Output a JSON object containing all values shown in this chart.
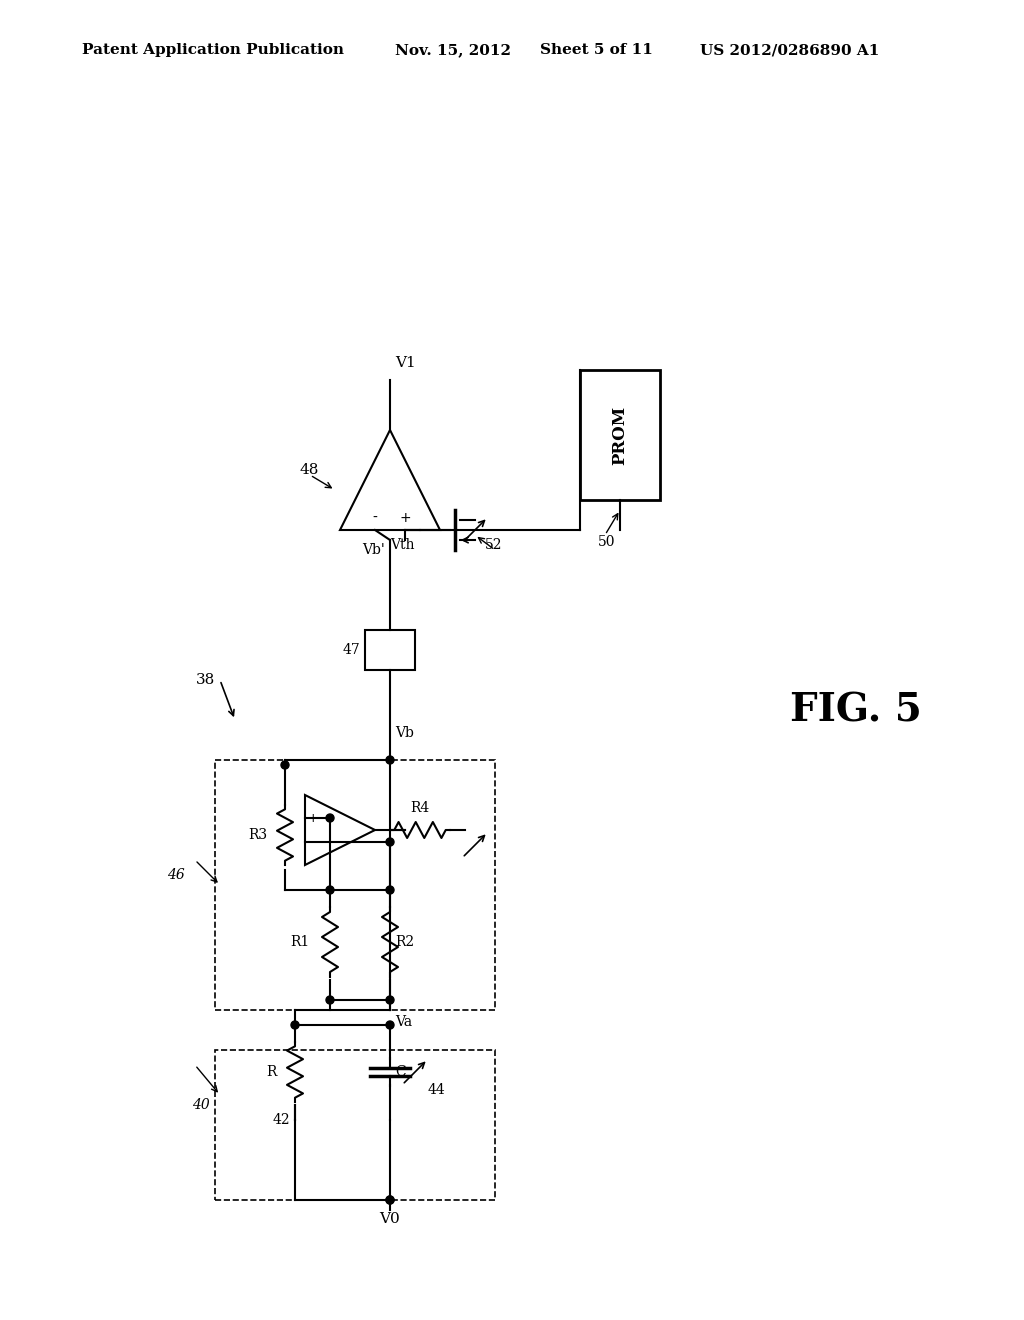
{
  "bg_color": "#ffffff",
  "line_color": "#000000",
  "header_text": "Patent Application Publication",
  "header_date": "Nov. 15, 2012",
  "header_sheet": "Sheet 5 of 11",
  "header_patent": "US 2012/0286890 A1",
  "fig_label": "FIG. 5",
  "label_38": "38",
  "label_40": "40",
  "label_42": "42",
  "label_44": "44",
  "label_46": "46",
  "label_47": "47",
  "label_48": "48",
  "label_50": "50",
  "label_52": "52",
  "label_V0": "V0",
  "label_V1": "V1",
  "label_Va": "Va",
  "label_Vb": "Vb",
  "label_Vb_prime": "Vb'",
  "label_Vth": "Vth",
  "label_R": "R",
  "label_C": "C",
  "label_R1": "R1",
  "label_R2": "R2",
  "label_R3": "R3",
  "label_R4": "R4",
  "label_PROM": "PROM"
}
